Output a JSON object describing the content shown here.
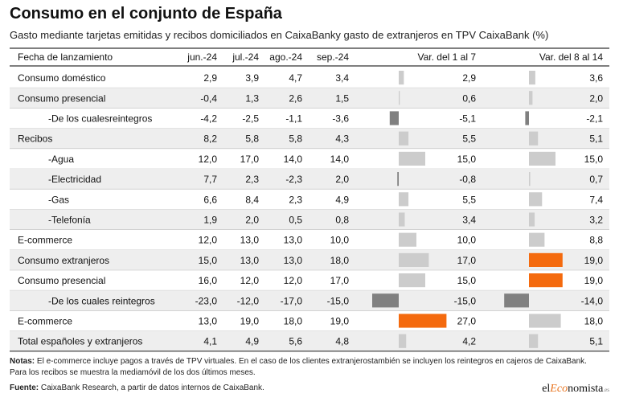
{
  "title": "Consumo en el conjunto de España",
  "subtitle": "Gasto mediante tarjetas emitidas y recibos domiciliados en CaixaBanky gasto de extranjeros en TPV CaixaBank (%)",
  "notes": {
    "label": "Notas:",
    "line1": "El e-commerce incluye pagos a través de TPV virtuales. En el caso de los clientes extranjerostambién se incluyen los reintegros en cajeros de CaixaBank.",
    "line2": "Para los recibos se muestra la mediamóvil de los dos últimos meses."
  },
  "source": {
    "label": "Fuente:",
    "text": "CaixaBank Research, a partir de datos internos de CaixaBank."
  },
  "logo": {
    "part1": "el",
    "part2": "Eco",
    "part3": "nomista",
    "part4": ".es"
  },
  "colors": {
    "bar_default": "#cccccc",
    "bar_negative": "#808080",
    "bar_highlight": "#f46a0e",
    "row_alt": "#eeeeee",
    "rule": "#333333"
  },
  "chart_data": {
    "type": "table",
    "columns": [
      "Fecha de lanzamiento",
      "jun.-24",
      "jul.-24",
      "ago.-24",
      "sep.-24",
      "Var. del 1 al 7",
      "Var. del 8 al 14"
    ],
    "rows": [
      {
        "label": "Consumo doméstico",
        "indent": false,
        "values": [
          2.9,
          3.9,
          4.7,
          3.4
        ],
        "var1": 2.9,
        "var2": 3.6,
        "display": [
          "2,9",
          "3,9",
          "4,7",
          "3,4",
          "2,9",
          "3,6"
        ],
        "highlight": []
      },
      {
        "label": "Consumo presencial",
        "indent": false,
        "values": [
          -0.4,
          1.3,
          2.6,
          1.5
        ],
        "var1": 0.6,
        "var2": 2.0,
        "display": [
          "-0,4",
          "1,3",
          "2,6",
          "1,5",
          "0,6",
          "2,0"
        ],
        "highlight": []
      },
      {
        "label": "-De los cualesreintegros",
        "indent": true,
        "values": [
          -4.2,
          -2.5,
          -1.1,
          -3.6
        ],
        "var1": -5.1,
        "var2": -2.1,
        "display": [
          "-4,2",
          "-2,5",
          "-1,1",
          "-3,6",
          "-5,1",
          "-2,1"
        ],
        "highlight": []
      },
      {
        "label": "Recibos",
        "indent": false,
        "values": [
          8.2,
          5.8,
          5.8,
          4.3
        ],
        "var1": 5.5,
        "var2": 5.1,
        "display": [
          "8,2",
          "5,8",
          "5,8",
          "4,3",
          "5,5",
          "5,1"
        ],
        "highlight": []
      },
      {
        "label": "-Agua",
        "indent": true,
        "values": [
          12.0,
          17.0,
          14.0,
          14.0
        ],
        "var1": 15.0,
        "var2": 15.0,
        "display": [
          "12,0",
          "17,0",
          "14,0",
          "14,0",
          "15,0",
          "15,0"
        ],
        "highlight": []
      },
      {
        "label": "-Electricidad",
        "indent": true,
        "values": [
          7.7,
          2.3,
          -2.3,
          2.0
        ],
        "var1": -0.8,
        "var2": 0.7,
        "display": [
          "7,7",
          "2,3",
          "-2,3",
          "2,0",
          "-0,8",
          "0,7"
        ],
        "highlight": []
      },
      {
        "label": "-Gas",
        "indent": true,
        "values": [
          6.6,
          8.4,
          2.3,
          4.9
        ],
        "var1": 5.5,
        "var2": 7.4,
        "display": [
          "6,6",
          "8,4",
          "2,3",
          "4,9",
          "5,5",
          "7,4"
        ],
        "highlight": []
      },
      {
        "label": "-Telefonía",
        "indent": true,
        "values": [
          1.9,
          2.0,
          0.5,
          0.8
        ],
        "var1": 3.4,
        "var2": 3.2,
        "display": [
          "1,9",
          "2,0",
          "0,5",
          "0,8",
          "3,4",
          "3,2"
        ],
        "highlight": []
      },
      {
        "label": "E-commerce",
        "indent": false,
        "values": [
          12.0,
          13.0,
          13.0,
          10.0
        ],
        "var1": 10.0,
        "var2": 8.8,
        "display": [
          "12,0",
          "13,0",
          "13,0",
          "10,0",
          "10,0",
          "8,8"
        ],
        "highlight": []
      },
      {
        "label": "Consumo extranjeros",
        "indent": false,
        "values": [
          15.0,
          13.0,
          13.0,
          18.0
        ],
        "var1": 17.0,
        "var2": 19.0,
        "display": [
          "15,0",
          "13,0",
          "13,0",
          "18,0",
          "17,0",
          "19,0"
        ],
        "highlight": [
          "var2"
        ]
      },
      {
        "label": "Consumo presencial",
        "indent": false,
        "values": [
          16.0,
          12.0,
          12.0,
          17.0
        ],
        "var1": 15.0,
        "var2": 19.0,
        "display": [
          "16,0",
          "12,0",
          "12,0",
          "17,0",
          "15,0",
          "19,0"
        ],
        "highlight": [
          "var2"
        ]
      },
      {
        "label": "-De los cuales reintegros",
        "indent": true,
        "values": [
          -23.0,
          -12.0,
          -17.0,
          -15.0
        ],
        "var1": -15.0,
        "var2": -14.0,
        "display": [
          "-23,0",
          "-12,0",
          "-17,0",
          "-15,0",
          "-15,0",
          "-14,0"
        ],
        "highlight": []
      },
      {
        "label": "E-commerce",
        "indent": false,
        "values": [
          13.0,
          19.0,
          18.0,
          19.0
        ],
        "var1": 27.0,
        "var2": 18.0,
        "display": [
          "13,0",
          "19,0",
          "18,0",
          "19,0",
          "27,0",
          "18,0"
        ],
        "highlight": [
          "var1"
        ]
      },
      {
        "label": "Total españoles y extranjeros",
        "indent": false,
        "values": [
          4.1,
          4.9,
          5.6,
          4.8
        ],
        "var1": 4.2,
        "var2": 5.1,
        "display": [
          "4,1",
          "4,9",
          "5,6",
          "4,8",
          "4,2",
          "5,1"
        ],
        "highlight": []
      }
    ]
  }
}
